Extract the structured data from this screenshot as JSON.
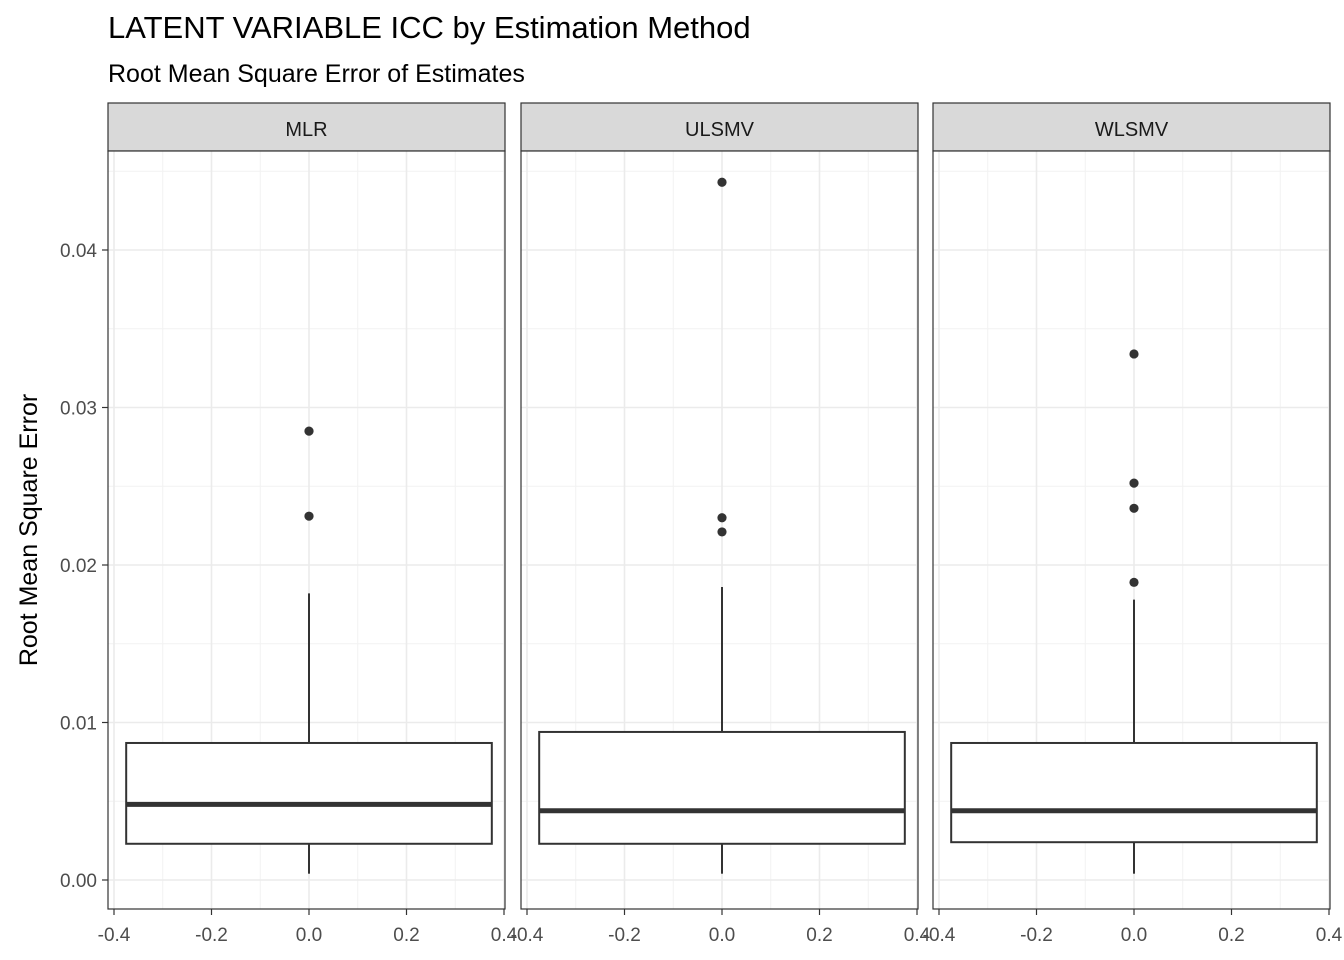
{
  "chart_data": {
    "type": "boxplot",
    "title": "LATENT VARIABLE ICC by Estimation Method",
    "subtitle": "Root Mean Square Error of Estimates",
    "xlabel": "",
    "ylabel": "Root Mean Square Error",
    "xlim": [
      -0.4,
      0.4
    ],
    "ylim": [
      0,
      0.046
    ],
    "x_ticks": [
      -0.4,
      -0.2,
      0.0,
      0.2,
      0.4
    ],
    "x_tick_labels": [
      "-0.4",
      "-0.2",
      "0.0",
      "0.2",
      "0.4"
    ],
    "y_ticks": [
      0.0,
      0.01,
      0.02,
      0.03,
      0.04
    ],
    "y_tick_labels": [
      "0.00",
      "0.01",
      "0.02",
      "0.03",
      "0.04"
    ],
    "grid": true,
    "facets": [
      {
        "label": "MLR",
        "box_x_range": [
          -0.375,
          0.375
        ],
        "whisker_low": 0.0004,
        "q1": 0.0023,
        "median": 0.0048,
        "q3": 0.0087,
        "whisker_high": 0.0182,
        "outliers": [
          0.0231,
          0.0285
        ]
      },
      {
        "label": "ULSMV",
        "box_x_range": [
          -0.375,
          0.375
        ],
        "whisker_low": 0.0004,
        "q1": 0.0023,
        "median": 0.0044,
        "q3": 0.0094,
        "whisker_high": 0.0186,
        "outliers": [
          0.0221,
          0.023,
          0.0443
        ]
      },
      {
        "label": "WLSMV",
        "box_x_range": [
          -0.375,
          0.375
        ],
        "whisker_low": 0.0004,
        "q1": 0.0024,
        "median": 0.0044,
        "q3": 0.0087,
        "whisker_high": 0.0178,
        "outliers": [
          0.0189,
          0.0236,
          0.0252,
          0.0334
        ]
      }
    ]
  }
}
